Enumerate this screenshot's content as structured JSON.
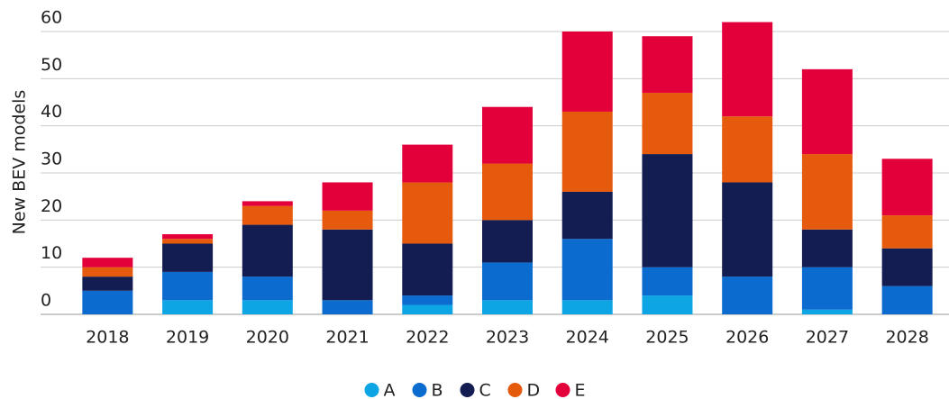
{
  "chart_data": {
    "type": "stacked_bar",
    "y_label": "New BEV models",
    "categories": [
      "2018",
      "2019",
      "2020",
      "2021",
      "2022",
      "2023",
      "2024",
      "2025",
      "2026",
      "2027",
      "2028"
    ],
    "series": [
      {
        "name": "A",
        "color": "#0ea5e4",
        "values": [
          0,
          3,
          3,
          0,
          2,
          3,
          3,
          4,
          0,
          1,
          0
        ]
      },
      {
        "name": "B",
        "color": "#0b6bcf",
        "values": [
          5,
          6,
          5,
          3,
          2,
          8,
          13,
          6,
          8,
          9,
          6
        ]
      },
      {
        "name": "C",
        "color": "#141d52",
        "values": [
          3,
          6,
          11,
          15,
          11,
          9,
          10,
          24,
          20,
          8,
          8
        ]
      },
      {
        "name": "D",
        "color": "#e65a0e",
        "values": [
          2,
          1,
          4,
          4,
          13,
          12,
          17,
          13,
          14,
          16,
          7
        ]
      },
      {
        "name": "E",
        "color": "#e3003a",
        "values": [
          2,
          1,
          1,
          6,
          8,
          12,
          17,
          12,
          20,
          18,
          12
        ]
      }
    ],
    "ylim": [
      0,
      60
    ],
    "yticks": [
      0,
      10,
      20,
      30,
      40,
      50,
      60
    ],
    "grid": true,
    "legend": "bottom"
  }
}
